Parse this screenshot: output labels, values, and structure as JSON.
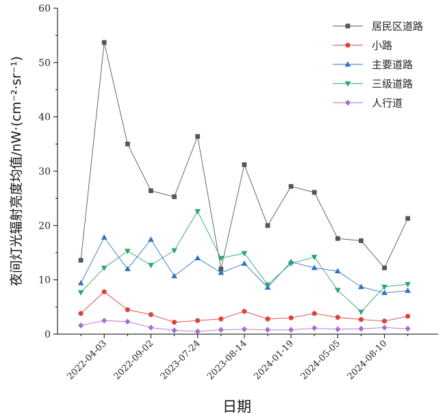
{
  "chart_data": {
    "type": "line",
    "title": "",
    "xlabel": "日期",
    "ylabel": "夜间灯光辐射亮度均值/nW·(cm⁻²·sr⁻¹)",
    "ylim": [
      0,
      60
    ],
    "yticks": [
      "0",
      "10",
      "20",
      "30",
      "40",
      "50",
      "60"
    ],
    "x_tick_labels": [
      "2022-04-03",
      "2022-09-02",
      "2023-07-24",
      "2023-08-14",
      "2024-01-19",
      "2024-05-05",
      "2024-08-10"
    ],
    "x_tick_positions": [
      2,
      4,
      6,
      8,
      10,
      12,
      14
    ],
    "x": [
      1,
      2,
      3,
      4,
      5,
      6,
      7,
      8,
      9,
      10,
      11,
      12,
      13,
      14,
      15
    ],
    "legend_position": "top-right",
    "series": [
      {
        "name": "居民区道路",
        "color": "#555555",
        "marker": "square",
        "values": [
          13.6,
          53.7,
          35.0,
          26.4,
          25.3,
          36.4,
          12.0,
          31.2,
          20.0,
          27.2,
          26.1,
          17.6,
          17.2,
          12.2,
          21.3
        ]
      },
      {
        "name": "小路",
        "color": "#e0403a",
        "marker": "circle",
        "values": [
          3.8,
          7.8,
          4.5,
          3.6,
          2.2,
          2.5,
          2.8,
          4.2,
          2.8,
          3.0,
          3.8,
          3.1,
          2.7,
          2.4,
          3.3
        ]
      },
      {
        "name": "主要道路",
        "color": "#2f72c4",
        "marker": "triangle-up",
        "values": [
          9.4,
          17.8,
          12.0,
          17.4,
          10.7,
          14.0,
          11.3,
          13.0,
          8.6,
          13.3,
          12.2,
          11.6,
          8.7,
          7.6,
          8.0
        ]
      },
      {
        "name": "三级道路",
        "color": "#2aa672",
        "marker": "triangle-down",
        "values": [
          7.7,
          12.2,
          15.3,
          12.7,
          15.4,
          22.6,
          14.0,
          14.9,
          9.1,
          13.0,
          14.2,
          8.1,
          4.1,
          8.7,
          9.2
        ]
      },
      {
        "name": "人行道",
        "color": "#a56cd6",
        "marker": "diamond",
        "values": [
          1.6,
          2.5,
          2.3,
          1.2,
          0.7,
          0.5,
          0.8,
          0.9,
          0.8,
          0.8,
          1.1,
          0.9,
          1.0,
          1.2,
          1.0
        ]
      }
    ]
  }
}
